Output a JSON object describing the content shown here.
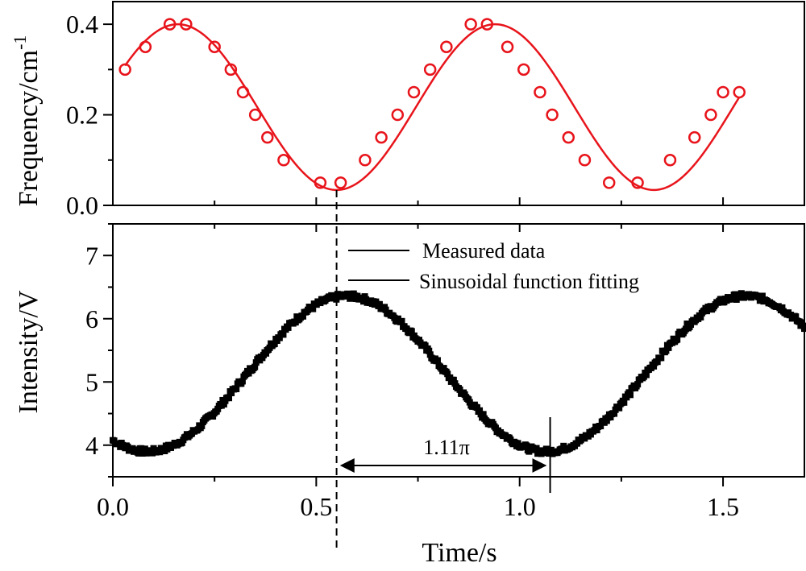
{
  "chart_data": [
    {
      "type": "scatter",
      "panel": "top",
      "ylabel": "Frequency/cm",
      "ylabel_superscript": "-1",
      "xlim": [
        0.0,
        1.7
      ],
      "ylim": [
        0.0,
        0.45
      ],
      "yticks": [
        0.0,
        0.2,
        0.4
      ],
      "ytick_labels": [
        "0.0",
        "0.2",
        "0.4"
      ],
      "grid": false,
      "series": [
        {
          "style": "open-circle markers",
          "color": "#e8141b",
          "x": [
            0.03,
            0.08,
            0.14,
            0.18,
            0.25,
            0.29,
            0.32,
            0.35,
            0.38,
            0.42,
            0.51,
            0.56,
            0.62,
            0.66,
            0.7,
            0.74,
            0.78,
            0.82,
            0.88,
            0.92,
            0.97,
            1.01,
            1.05,
            1.08,
            1.12,
            1.16,
            1.22,
            1.29,
            1.37,
            1.43,
            1.47,
            1.5,
            1.54
          ],
          "y": [
            0.3,
            0.35,
            0.4,
            0.4,
            0.35,
            0.3,
            0.25,
            0.2,
            0.15,
            0.1,
            0.05,
            0.05,
            0.1,
            0.15,
            0.2,
            0.25,
            0.3,
            0.35,
            0.4,
            0.4,
            0.35,
            0.3,
            0.25,
            0.2,
            0.15,
            0.1,
            0.05,
            0.05,
            0.1,
            0.15,
            0.2,
            0.25,
            0.25
          ]
        },
        {
          "style": "solid fit line",
          "color": "#e8141b",
          "function": "sinusoid",
          "mean": 0.217,
          "amplitude": 0.183,
          "period": 0.78,
          "peak_at": 0.16,
          "x_range": [
            0.03,
            1.54
          ]
        }
      ]
    },
    {
      "type": "line",
      "panel": "bottom",
      "xlabel": "Time/s",
      "ylabel": "Intensity/V",
      "xlim": [
        0.0,
        1.7
      ],
      "ylim": [
        3.5,
        7.5
      ],
      "xticks": [
        0.0,
        0.5,
        1.0,
        1.5
      ],
      "xtick_labels": [
        "0.0",
        "0.5",
        "1.0",
        "1.5"
      ],
      "yticks": [
        4,
        5,
        6,
        7
      ],
      "ytick_labels": [
        "4",
        "5",
        "6",
        "7"
      ],
      "grid": false,
      "legend_position": "top-center",
      "legend": [
        "Measured data",
        "Sinusoidal function fitting"
      ],
      "series": [
        {
          "style": "dense square markers (measured)",
          "color": "#000000",
          "function": "sinusoid",
          "mean": 5.13,
          "amplitude": 1.23,
          "period": 0.98,
          "peak_at": 0.575,
          "x_range": [
            0.0,
            1.7
          ]
        }
      ],
      "annotations": {
        "phase_label": "1.11π",
        "arrow_from_x": 0.55,
        "arrow_to_x": 1.075,
        "dashed_line_x": 0.55
      }
    }
  ]
}
